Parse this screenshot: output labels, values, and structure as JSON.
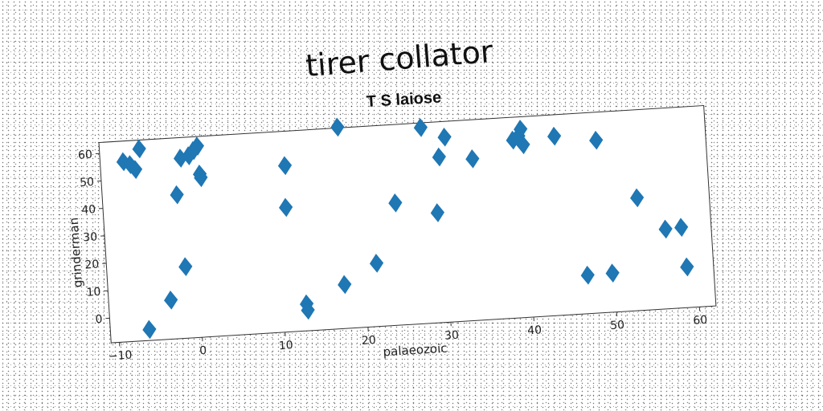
{
  "title": "tirer collator",
  "chart_data": {
    "type": "scatter",
    "title": "T S laiose",
    "xlabel": "palaeozoic",
    "ylabel": "grinderman",
    "xlim": [
      -11,
      62
    ],
    "ylim": [
      -9,
      64
    ],
    "xticks": [
      -10,
      0,
      10,
      20,
      30,
      40,
      50,
      60
    ],
    "yticks": [
      0,
      10,
      20,
      30,
      40,
      50,
      60
    ],
    "grid": false,
    "marker": "diamond",
    "color": "#1f77b4",
    "points": [
      {
        "x": -8.2,
        "y": 56.5
      },
      {
        "x": -7.4,
        "y": 55.3
      },
      {
        "x": -6.8,
        "y": 53.4
      },
      {
        "x": -6.2,
        "y": 60.8
      },
      {
        "x": -6.3,
        "y": -5.0
      },
      {
        "x": -3.5,
        "y": 5.2
      },
      {
        "x": -2.0,
        "y": 43.3
      },
      {
        "x": -1.5,
        "y": 17.0
      },
      {
        "x": -1.3,
        "y": 56.5
      },
      {
        "x": -0.3,
        "y": 57.2
      },
      {
        "x": 0.3,
        "y": 59.0
      },
      {
        "x": 0.8,
        "y": 60.5
      },
      {
        "x": 1.0,
        "y": 49.0
      },
      {
        "x": 0.9,
        "y": 50.3
      },
      {
        "x": 11.2,
        "y": 51.5
      },
      {
        "x": 11.0,
        "y": 36.3
      },
      {
        "x": 12.8,
        "y": 0.8
      },
      {
        "x": 12.9,
        "y": -1.5
      },
      {
        "x": 17.5,
        "y": 7.0
      },
      {
        "x": 17.8,
        "y": 64.3
      },
      {
        "x": 21.5,
        "y": 14.0
      },
      {
        "x": 24.2,
        "y": 35.5
      },
      {
        "x": 27.8,
        "y": 62.3
      },
      {
        "x": 29.2,
        "y": 31.0
      },
      {
        "x": 29.8,
        "y": 51.2
      },
      {
        "x": 30.6,
        "y": 58.3
      },
      {
        "x": 33.8,
        "y": 49.8
      },
      {
        "x": 38.8,
        "y": 55.7
      },
      {
        "x": 39.5,
        "y": 57.0
      },
      {
        "x": 39.8,
        "y": 59.5
      },
      {
        "x": 40.0,
        "y": 53.8
      },
      {
        "x": 43.8,
        "y": 56.2
      },
      {
        "x": 46.8,
        "y": 5.0
      },
      {
        "x": 48.8,
        "y": 53.8
      },
      {
        "x": 49.8,
        "y": 5.2
      },
      {
        "x": 53.3,
        "y": 32.0
      },
      {
        "x": 56.5,
        "y": 20.0
      },
      {
        "x": 58.4,
        "y": 20.3
      },
      {
        "x": 58.8,
        "y": 5.8
      }
    ]
  }
}
